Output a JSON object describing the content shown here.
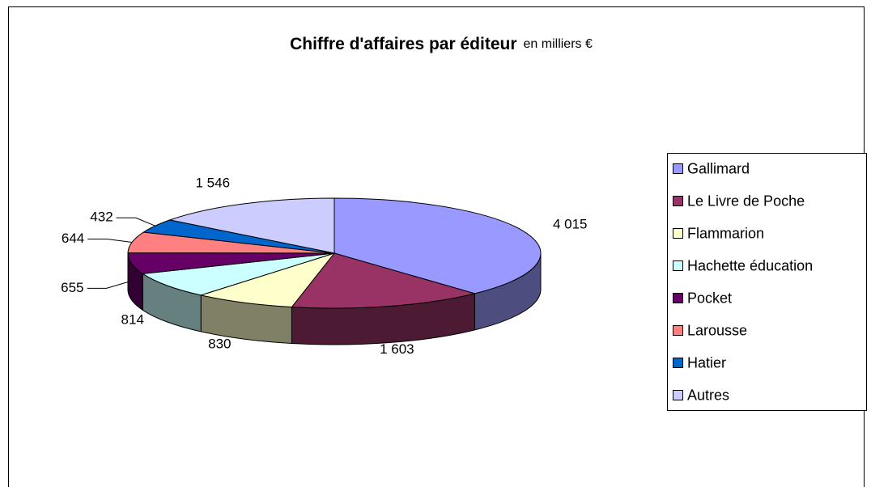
{
  "chart_data": {
    "type": "pie3d",
    "title": "Chiffre d'affaires par éditeur",
    "subtitle": "en milliers €",
    "categories": [
      "Gallimard",
      "Le Livre de Poche",
      "Flammarion",
      "Hachette éducation",
      "Pocket",
      "Larousse",
      "Hatier",
      "Autres"
    ],
    "values": [
      4015,
      1603,
      830,
      814,
      655,
      644,
      432,
      1546
    ],
    "value_labels": [
      "4 015",
      "1 603",
      "830",
      "814",
      "655",
      "644",
      "432",
      "1 546"
    ],
    "colors": [
      "#9999ff",
      "#993366",
      "#ffffcc",
      "#ccffff",
      "#660066",
      "#ff8080",
      "#0066cc",
      "#ccccff"
    ],
    "legend": "right"
  }
}
